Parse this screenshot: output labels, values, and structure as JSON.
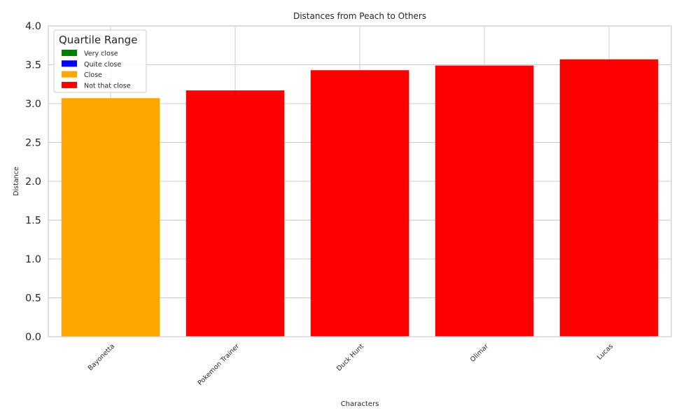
{
  "chart_data": {
    "type": "bar",
    "title": "Distances from Peach to Others",
    "xlabel": "Characters",
    "ylabel": "Distance",
    "categories": [
      "Bayonetta",
      "Pokemon Trainer",
      "Duck Hunt",
      "Olimar",
      "Lucas"
    ],
    "values": [
      3.07,
      3.17,
      3.43,
      3.49,
      3.57
    ],
    "bar_groups": [
      "Close",
      "Not that close",
      "Not that close",
      "Not that close",
      "Not that close"
    ],
    "ylim": [
      0,
      4
    ],
    "yticks": [
      "0.0",
      "0.5",
      "1.0",
      "1.5",
      "2.0",
      "2.5",
      "3.0",
      "3.5",
      "4.0"
    ],
    "grid": true,
    "legend": {
      "title": "Quartile Range",
      "placement": "top-left",
      "entries": [
        {
          "label": "Very close",
          "color": "#008000"
        },
        {
          "label": "Quite close",
          "color": "#0000ff"
        },
        {
          "label": "Close",
          "color": "#ffa500"
        },
        {
          "label": "Not that close",
          "color": "#ff0000"
        }
      ]
    }
  }
}
